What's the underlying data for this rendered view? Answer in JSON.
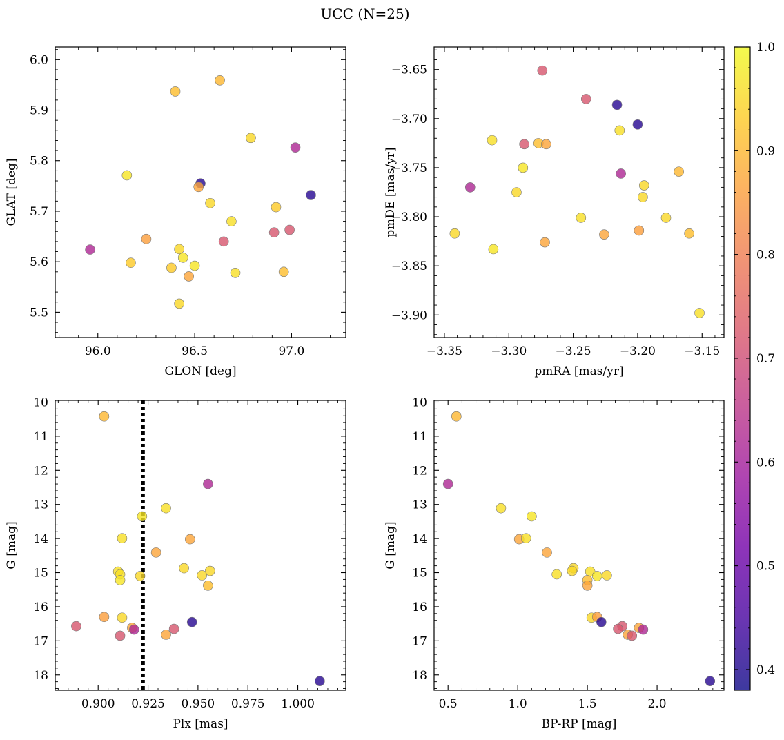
{
  "figure": {
    "suptitle": "UCC (N=25)"
  },
  "colormap": {
    "name": "plasma",
    "vmin": 0.38,
    "vmax": 1.0,
    "ticks": [
      "0.4",
      "0.5",
      "0.6",
      "0.7",
      "0.8",
      "0.9",
      "1.0"
    ],
    "stops": [
      "#0d0887",
      "#46039f",
      "#7201a8",
      "#9c179e",
      "#bd3786",
      "#d8576b",
      "#ed7953",
      "#fb9f3a",
      "#fdca26",
      "#f0f921"
    ]
  },
  "chart_data": [
    {
      "type": "scatter",
      "xlabel": "GLON [deg]",
      "ylabel": "GLAT [deg]",
      "xlim": [
        95.78,
        97.28
      ],
      "ylim": [
        5.45,
        6.025
      ],
      "xticks": [
        96.0,
        96.5,
        97.0
      ],
      "xticklabels": [
        "96.0",
        "96.5",
        "97.0"
      ],
      "yticks": [
        5.5,
        5.6,
        5.7,
        5.8,
        5.9,
        6.0
      ],
      "yticklabels": [
        "5.5",
        "5.6",
        "5.7",
        "5.8",
        "5.9",
        "6.0"
      ],
      "x": [
        96.4,
        96.63,
        96.79,
        97.02,
        96.15,
        96.53,
        96.52,
        96.58,
        96.69,
        96.92,
        97.1,
        96.91,
        96.99,
        95.96,
        96.25,
        96.65,
        96.42,
        96.44,
        96.17,
        96.38,
        96.5,
        96.47,
        96.71,
        96.96,
        96.42
      ],
      "y": [
        5.937,
        5.959,
        5.845,
        5.826,
        5.771,
        5.755,
        5.748,
        5.716,
        5.68,
        5.708,
        5.732,
        5.658,
        5.663,
        5.624,
        5.645,
        5.64,
        5.625,
        5.608,
        5.598,
        5.588,
        5.592,
        5.571,
        5.578,
        5.58,
        5.517
      ],
      "color_values": [
        0.91,
        0.9,
        0.95,
        0.62,
        0.97,
        0.41,
        0.87,
        0.95,
        0.96,
        0.93,
        0.41,
        0.72,
        0.72,
        0.62,
        0.86,
        0.72,
        0.95,
        0.97,
        0.93,
        0.93,
        0.97,
        0.87,
        0.96,
        0.91,
        0.95
      ]
    },
    {
      "type": "scatter",
      "xlabel": "pmRA [mas/yr]",
      "ylabel": "pmDE [mas/yr]",
      "xlim": [
        -3.358,
        -3.133
      ],
      "ylim": [
        -3.923,
        -3.627
      ],
      "xticks": [
        -3.35,
        -3.3,
        -3.25,
        -3.2,
        -3.15
      ],
      "xticklabels": [
        "−3.35",
        "−3.30",
        "−3.25",
        "−3.20",
        "−3.15"
      ],
      "yticks": [
        -3.9,
        -3.85,
        -3.8,
        -3.75,
        -3.7,
        -3.65
      ],
      "yticklabels": [
        "−3.90",
        "−3.85",
        "−3.80",
        "−3.75",
        "−3.70",
        "−3.65"
      ],
      "x": [
        -3.274,
        -3.24,
        -3.216,
        -3.2,
        -3.214,
        -3.313,
        -3.288,
        -3.277,
        -3.271,
        -3.289,
        -3.213,
        -3.168,
        -3.195,
        -3.33,
        -3.294,
        -3.196,
        -3.244,
        -3.178,
        -3.199,
        -3.226,
        -3.16,
        -3.342,
        -3.312,
        -3.272,
        -3.152
      ],
      "y": [
        -3.651,
        -3.68,
        -3.686,
        -3.706,
        -3.712,
        -3.722,
        -3.726,
        -3.725,
        -3.726,
        -3.75,
        -3.756,
        -3.754,
        -3.768,
        -3.77,
        -3.775,
        -3.78,
        -3.801,
        -3.801,
        -3.814,
        -3.818,
        -3.817,
        -3.817,
        -3.833,
        -3.826,
        -3.898
      ],
      "color_values": [
        0.72,
        0.72,
        0.41,
        0.41,
        0.96,
        0.96,
        0.72,
        0.91,
        0.87,
        0.97,
        0.62,
        0.9,
        0.95,
        0.62,
        0.95,
        0.95,
        0.96,
        0.95,
        0.86,
        0.87,
        0.91,
        0.95,
        0.97,
        0.87,
        0.96
      ]
    },
    {
      "type": "scatter",
      "xlabel": "Plx [mas]",
      "ylabel": "G [mag]",
      "xlim": [
        0.8785,
        1.024
      ],
      "ylim": [
        18.45,
        9.95
      ],
      "y_inverted": true,
      "xticks": [
        0.9,
        0.925,
        0.95,
        0.975,
        1.0
      ],
      "xticklabels": [
        "0.900",
        "0.925",
        "0.950",
        "0.975",
        "1.000"
      ],
      "yticks": [
        10,
        11,
        12,
        13,
        14,
        15,
        16,
        17,
        18
      ],
      "yticklabels": [
        "10",
        "11",
        "12",
        "13",
        "14",
        "15",
        "16",
        "17",
        "18"
      ],
      "vline": {
        "x": 0.9225,
        "style": "dotted",
        "color": "#000000"
      },
      "x": [
        0.903,
        0.955,
        0.934,
        0.922,
        0.912,
        0.946,
        0.929,
        0.943,
        0.91,
        0.911,
        0.956,
        0.952,
        0.921,
        0.955,
        0.903,
        0.912,
        0.947,
        0.889,
        0.917,
        0.918,
        0.938,
        0.911,
        0.934,
        1.011,
        0.911
      ],
      "y": [
        10.42,
        12.4,
        13.11,
        13.35,
        13.99,
        14.02,
        14.41,
        14.87,
        14.97,
        15.05,
        14.95,
        15.08,
        15.1,
        15.38,
        16.3,
        16.32,
        16.45,
        16.57,
        16.62,
        16.67,
        16.65,
        16.85,
        16.82,
        18.18,
        15.22
      ],
      "color_values": [
        0.9,
        0.62,
        0.96,
        0.97,
        0.96,
        0.87,
        0.87,
        0.95,
        0.96,
        0.96,
        0.95,
        0.95,
        0.95,
        0.91,
        0.86,
        0.95,
        0.41,
        0.72,
        0.87,
        0.62,
        0.72,
        0.72,
        0.87,
        0.41,
        0.97
      ]
    },
    {
      "type": "scatter",
      "xlabel": "BP-RP [mag]",
      "ylabel": "G [mag]",
      "xlim": [
        0.4,
        2.48
      ],
      "ylim": [
        18.45,
        9.95
      ],
      "y_inverted": true,
      "xticks": [
        0.5,
        1.0,
        1.5,
        2.0
      ],
      "xticklabels": [
        "0.5",
        "1.0",
        "1.5",
        "2.0"
      ],
      "yticks": [
        10,
        11,
        12,
        13,
        14,
        15,
        16,
        17,
        18
      ],
      "yticklabels": [
        "10",
        "11",
        "12",
        "13",
        "14",
        "15",
        "16",
        "17",
        "18"
      ],
      "x": [
        0.56,
        0.5,
        0.88,
        1.1,
        1.01,
        1.06,
        1.21,
        1.4,
        1.28,
        1.39,
        1.52,
        1.5,
        1.57,
        1.64,
        1.5,
        1.53,
        1.57,
        1.6,
        1.75,
        1.72,
        1.87,
        1.9,
        1.79,
        1.82,
        2.38
      ],
      "y": [
        10.42,
        12.4,
        13.11,
        13.35,
        14.02,
        13.99,
        14.41,
        14.87,
        15.05,
        14.95,
        14.97,
        15.22,
        15.1,
        15.08,
        15.38,
        16.32,
        16.3,
        16.45,
        16.57,
        16.65,
        16.62,
        16.67,
        16.82,
        16.85,
        18.18
      ],
      "color_values": [
        0.9,
        0.62,
        0.96,
        0.97,
        0.87,
        0.96,
        0.87,
        0.95,
        0.96,
        0.95,
        0.96,
        0.91,
        0.97,
        0.95,
        0.87,
        0.95,
        0.86,
        0.41,
        0.72,
        0.72,
        0.87,
        0.62,
        0.87,
        0.72,
        0.41
      ]
    }
  ]
}
